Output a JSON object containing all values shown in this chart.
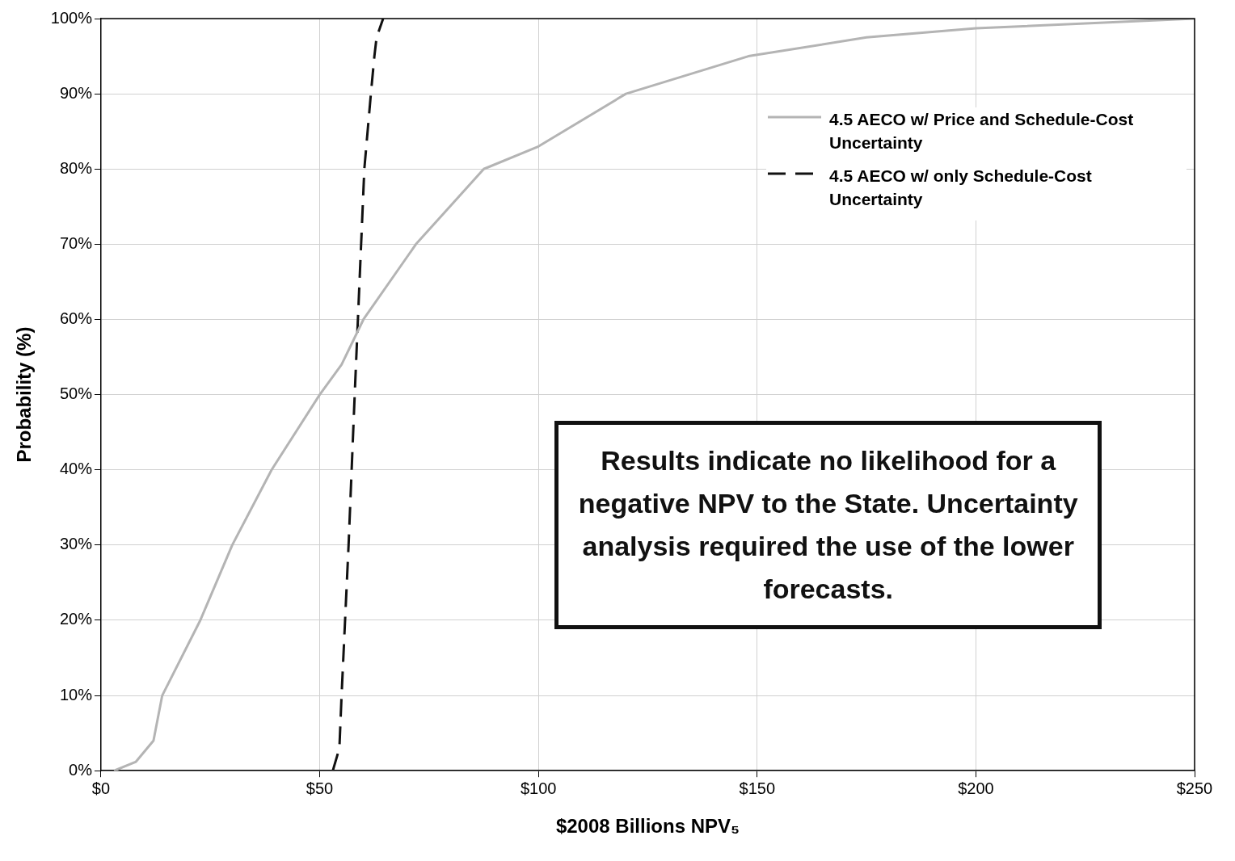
{
  "chart_data": {
    "type": "line",
    "xlabel": "$2008 Billions NPV₅",
    "ylabel": "Probability (%)",
    "xlim": [
      0,
      250
    ],
    "xticks": [
      {
        "value": 0,
        "label": "$0"
      },
      {
        "value": 50,
        "label": "$50"
      },
      {
        "value": 100,
        "label": "$100"
      },
      {
        "value": 150,
        "label": "$150"
      },
      {
        "value": 200,
        "label": "$200"
      },
      {
        "value": 250,
        "label": "$250"
      }
    ],
    "ylim": [
      0,
      100
    ],
    "yticks": [
      {
        "value": 0,
        "label": "0%"
      },
      {
        "value": 10,
        "label": "10%"
      },
      {
        "value": 20,
        "label": "20%"
      },
      {
        "value": 30,
        "label": "30%"
      },
      {
        "value": 40,
        "label": "40%"
      },
      {
        "value": 50,
        "label": "50%"
      },
      {
        "value": 60,
        "label": "60%"
      },
      {
        "value": 70,
        "label": "70%"
      },
      {
        "value": 80,
        "label": "80%"
      },
      {
        "value": 90,
        "label": "90%"
      },
      {
        "value": 100,
        "label": "100%"
      }
    ],
    "grid": true,
    "legend": "top right",
    "marker": "none",
    "series": [
      {
        "name": "4.5 AECO w/ Price and Schedule-Cost Uncertainty",
        "color": "#b4b4b4",
        "line_style": "solid",
        "x": [
          3,
          8,
          12,
          14,
          22.7,
          30,
          39,
          50,
          55,
          60,
          72,
          87.5,
          100,
          120,
          148,
          175,
          200,
          250
        ],
        "values": [
          0,
          1.2,
          4,
          10,
          20,
          30,
          40,
          50,
          54,
          60,
          70,
          80,
          83,
          90,
          95,
          97.5,
          98.7,
          100
        ]
      },
      {
        "name": "4.5 AECO w/ only Schedule-Cost Uncertainty",
        "color": "#111111",
        "line_style": "dashed",
        "x": [
          53,
          54.5,
          55,
          56.6,
          58,
          60.2,
          61.7,
          62.5,
          63,
          64.5
        ],
        "values": [
          0,
          3,
          10,
          30,
          50,
          80,
          90,
          95,
          97.5,
          100
        ]
      }
    ],
    "annotations": [
      "Results indicate no likelihood for a negative NPV to the State.  Uncertainty analysis required the use of the lower forecasts."
    ]
  }
}
